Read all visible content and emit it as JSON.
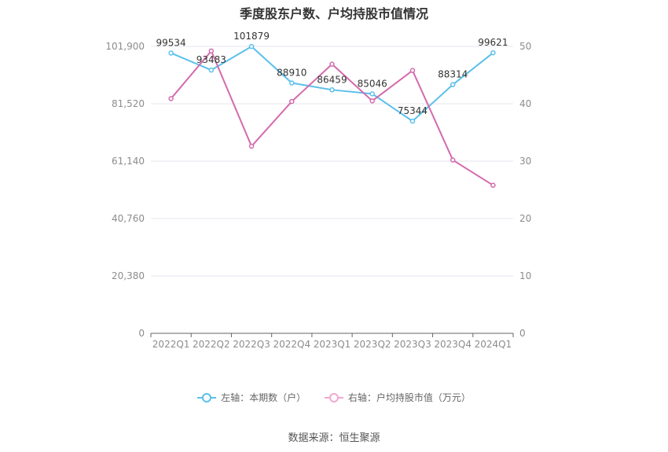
{
  "chart_data": {
    "type": "line",
    "title": "季度股东户数、户均持股市值情况",
    "categories": [
      "2022Q1",
      "2022Q2",
      "2022Q3",
      "2022Q4",
      "2023Q1",
      "2023Q2",
      "2023Q3",
      "2023Q4",
      "2024Q1"
    ],
    "left_axis": {
      "ticks": [
        "0",
        "20,380",
        "40,760",
        "61,140",
        "81,520",
        "101,900"
      ],
      "ylim": [
        0,
        101900
      ]
    },
    "right_axis": {
      "ticks": [
        "0",
        "10",
        "20",
        "30",
        "40",
        "50"
      ],
      "ylim": [
        0,
        50
      ]
    },
    "series": [
      {
        "name": "左轴：本期数（户）",
        "axis": "left",
        "color": "#5bc0eb",
        "values": [
          99534,
          93483,
          101879,
          88910,
          86459,
          85046,
          75344,
          88314,
          99621
        ],
        "labels": [
          "99534",
          "93483",
          "101879",
          "88910",
          "86459",
          "85046",
          "75344",
          "88314",
          "99621"
        ]
      },
      {
        "name": "右轴：户均持股市值（万元）",
        "axis": "right",
        "color": "#d46aad",
        "values": [
          40.9,
          49.2,
          32.6,
          40.4,
          46.9,
          40.5,
          45.8,
          30.2,
          25.8
        ]
      }
    ],
    "legend_position": "bottom",
    "grid": true
  },
  "source": "数据来源：恒生聚源"
}
